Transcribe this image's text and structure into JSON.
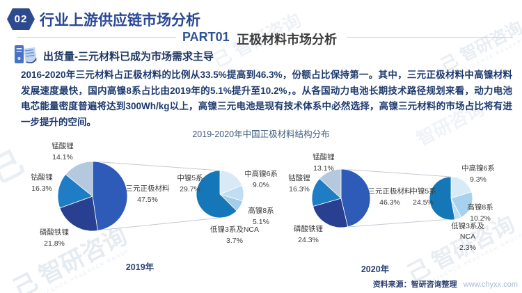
{
  "header": {
    "badge": "02",
    "title": "行业上游供应链市场分析",
    "part_label": "PART01",
    "part_title": "正极材料市场分析"
  },
  "subtitle": "出货量-三元材料已成为市场需求主导",
  "paragraph": "2016-2020年三元材料占正极材料的比例从33.5%提高到46.3%，份额占比保持第一。其中，三元正极材料中高镍材料发展速度最快，国内高镍8系占比由2019年的5.1%提升至10.2%，。从各国动力电池长期技术路径规划来看，动力电池电芯能量密度普遍将达到300Wh/kg以上，高镍三元电池是现有技术体系中必然选择，高镍三元材料的市场占比将有进一步提升的空间。",
  "chart_title": "2019-2020年中国正极材料结构分布",
  "chart_data": [
    {
      "type": "pie-of-pie",
      "title": "2019-2020年中国正极材料结构分布",
      "year": "2019年",
      "legend_position": "none",
      "main_pie": {
        "slices": [
          {
            "label": "三元正极材料",
            "value": 47.5,
            "display": "47.5%",
            "color": "#2e5bb8"
          },
          {
            "label": "磷酸铁锂",
            "value": 21.8,
            "display": "21.8%",
            "color": "#28408f"
          },
          {
            "label": "钴酸锂",
            "value": 16.3,
            "display": "16.3%",
            "color": "#1e7dc4"
          },
          {
            "label": "锰酸锂",
            "value": 14.1,
            "display": "14.1%",
            "color": "#b5c9de"
          }
        ]
      },
      "secondary_pie": {
        "expanded_from": "三元正极材料",
        "slices": [
          {
            "label": "中高镍6系",
            "value": 9.0,
            "display": "9.0%",
            "color": "#d9eaf7"
          },
          {
            "label": "高镍8系",
            "value": 5.1,
            "display": "5.1%",
            "color": "#c1ddf1"
          },
          {
            "label": "低镍3系及NCA",
            "value": 3.7,
            "display": "3.7%",
            "color": "#a2cde9"
          },
          {
            "label": "中镍5系",
            "value": 29.7,
            "display": "29.7%",
            "color": "#1577b8"
          }
        ]
      }
    },
    {
      "type": "pie-of-pie",
      "title": "2019-2020年中国正极材料结构分布",
      "year": "2020年",
      "legend_position": "none",
      "main_pie": {
        "slices": [
          {
            "label": "三元正极材料",
            "value": 46.3,
            "display": "46.3%",
            "color": "#2e5bb8"
          },
          {
            "label": "磷酸铁锂",
            "value": 24.3,
            "display": "24.3%",
            "color": "#28408f"
          },
          {
            "label": "钴酸锂",
            "value": 16.3,
            "display": "16.3%",
            "color": "#1e7dc4"
          },
          {
            "label": "锰酸锂",
            "value": 13.1,
            "display": "13.1%",
            "color": "#b5c9de"
          }
        ]
      },
      "secondary_pie": {
        "expanded_from": "三元正极材料",
        "slices": [
          {
            "label": "中高镍6系",
            "value": 9.3,
            "display": "9.3%",
            "color": "#d9eaf7"
          },
          {
            "label": "高镍8系",
            "value": 10.2,
            "display": "10.2%",
            "color": "#a6d2ee"
          },
          {
            "label": "低镍3系及NCA",
            "value": 2.3,
            "display": "2.3%",
            "color": "#c1ddf1"
          },
          {
            "label": "中镍5系",
            "value": 24.5,
            "display": "24.5%",
            "color": "#1577b8"
          }
        ]
      }
    }
  ],
  "footer": {
    "source": "资料来源：智研咨询整理",
    "site": "www.chyxx.com"
  },
  "watermark": {
    "logo_glyph": "己",
    "brand": "智研咨询",
    "sub": "INTELLIGENCE RESEARCH GROUP"
  },
  "colors": {
    "accent_navy": "#2e4a8f",
    "text_navy": "#1e3a6e",
    "part_blue": "#2e5597",
    "divider_gray": "#ccd2da",
    "connector_gray": "#c4c9d1",
    "site_gray": "#a9bacf"
  }
}
